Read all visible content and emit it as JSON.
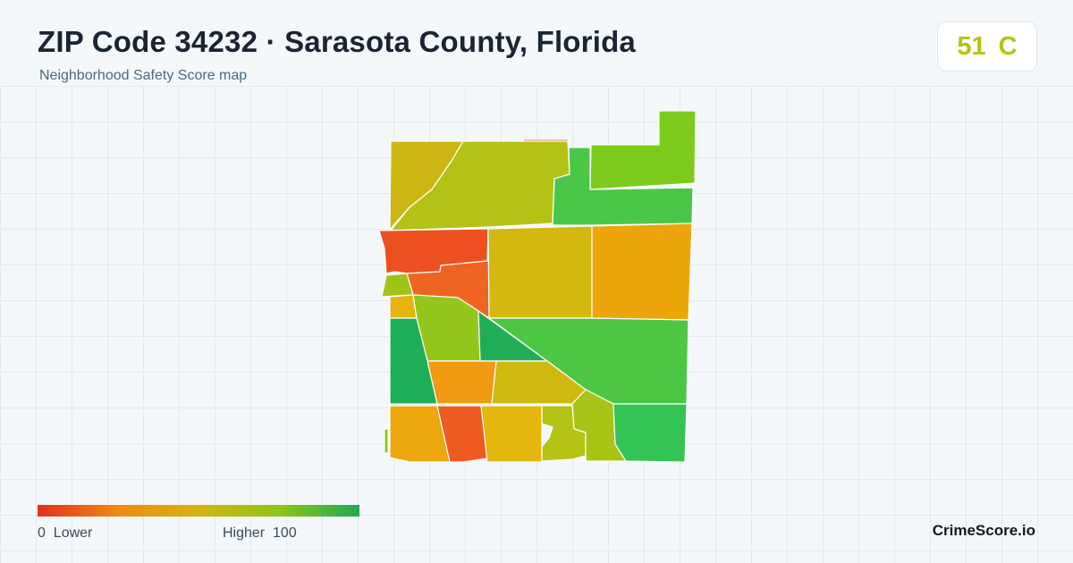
{
  "header": {
    "title": "ZIP Code 34232 · Sarasota County, Florida",
    "subtitle": "Neighborhood Safety Score map"
  },
  "score": {
    "value": "51",
    "grade": "C",
    "color": "#b5c40f"
  },
  "legend": {
    "min_value": "0",
    "min_label": "Lower",
    "max_label": "Higher",
    "max_value": "100",
    "colors": [
      "#e3301f",
      "#ef8a12",
      "#d7b40c",
      "#8dc516",
      "#1faa52"
    ]
  },
  "brand": "CrimeScore.io",
  "map": {
    "region_colors": {
      "nw": "#cdb611",
      "n_center": "#b2c315",
      "ne_strip": "#7ccb1d",
      "ne_block": "#4ac748",
      "w_red": "#ec5020",
      "w_orange": "#f06421",
      "center": "#d4b810",
      "east_orange": "#eca60c",
      "tiny_green": "#9ec41a",
      "tiny_yellow": "#e6b40d",
      "mid_lime": "#93c61a",
      "diag_green": "#21ad55",
      "west_green": "#1eae58",
      "east_big": "#4dc743",
      "s_orange": "#f09b12",
      "s_yellow": "#cfb812",
      "sw_orange": "#eca70f",
      "s_red": "#ee5b22",
      "s_yellow2": "#e5b60d",
      "s_lime": "#b4c413",
      "s_lime2": "#a8c417",
      "se_green": "#33c455"
    }
  }
}
